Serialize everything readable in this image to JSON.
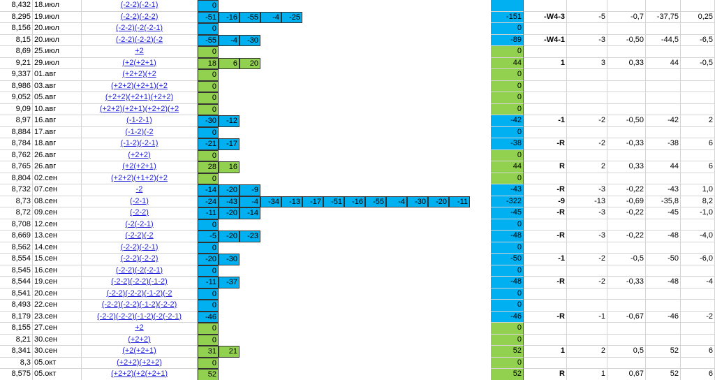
{
  "rows": [
    {
      "a": "8,432",
      "date": "18.июл",
      "formula": "(-2-2)(-2-1)",
      "fill": "#00b0f0",
      "cells": [
        0
      ]
    },
    {
      "a": "8,295",
      "date": "19.июл",
      "formula": "(-2-2)(-2-2)",
      "fill": "#00b0f0",
      "cells": [
        -51,
        -16,
        -55,
        -4,
        -25
      ],
      "total": -151,
      "label": "-W4-3",
      "n": "-5",
      "ratio": "-0,7",
      "avg": "-37,75",
      "last": "0,25"
    },
    {
      "a": "8,156",
      "date": "20.июл",
      "formula": "(-2-2)(-2(-2-1)",
      "fill": "#00b0f0",
      "cells": [
        0
      ],
      "total": 0
    },
    {
      "a": "8,15",
      "date": "20.июл",
      "formula": "(-2-2)(-2-2)(-2",
      "fill": "#00b0f0",
      "cells": [
        -55,
        -4,
        -30
      ],
      "total": -89,
      "label": "-W4-1",
      "n": "-3",
      "ratio": "-0,50",
      "avg": "-44,5",
      "last": "-6,5"
    },
    {
      "a": "8,69",
      "date": "25.июл",
      "formula": "+2",
      "fill": "#92d050",
      "cells": [
        0
      ],
      "total": 0
    },
    {
      "a": "9,21",
      "date": "29.июл",
      "formula": "(+2(+2+1)",
      "fill": "#92d050",
      "cells": [
        18,
        6,
        20
      ],
      "total": 44,
      "label": "1",
      "n": "3",
      "ratio": "0,33",
      "avg": "44",
      "last": "-0,5"
    },
    {
      "a": "9,337",
      "date": "01.авг",
      "formula": "(+2+2)(+2",
      "fill": "#92d050",
      "cells": [
        0
      ],
      "total": 0
    },
    {
      "a": "8,986",
      "date": "03.авг",
      "formula": "(+2+2)(+2+1)(+2",
      "fill": "#92d050",
      "cells": [
        0
      ],
      "total": 0
    },
    {
      "a": "9,052",
      "date": "05.авг",
      "formula": "(+2+2)(+2+1)(+2+2)",
      "fill": "#92d050",
      "cells": [
        0
      ],
      "total": 0
    },
    {
      "a": "9,09",
      "date": "10.авг",
      "formula": "(+2+2)(+2+1)(+2+2)(+2",
      "fill": "#92d050",
      "cells": [
        0
      ],
      "total": 0
    },
    {
      "a": "8,97",
      "date": "16.авг",
      "formula": "(-1-2-1)",
      "fill": "#00b0f0",
      "cells": [
        -30,
        -12
      ],
      "total": -42,
      "label": "-1",
      "n": "-2",
      "ratio": "-0,50",
      "avg": "-42",
      "last": "2"
    },
    {
      "a": "8,884",
      "date": "17.авг",
      "formula": "(-1-2)(-2",
      "fill": "#00b0f0",
      "cells": [
        0
      ],
      "total": 0
    },
    {
      "a": "8,784",
      "date": "18.авг",
      "formula": "(-1-2)(-2-1)",
      "fill": "#00b0f0",
      "cells": [
        -21,
        -17
      ],
      "total": -38,
      "label": "-R",
      "n": "-2",
      "ratio": "-0,33",
      "avg": "-38",
      "last": "6"
    },
    {
      "a": "8,762",
      "date": "26.авг",
      "formula": "(+2+2)",
      "fill": "#92d050",
      "cells": [
        0
      ],
      "total": 0
    },
    {
      "a": "8,765",
      "date": "26.авг",
      "formula": "(+2(+2+1)",
      "fill": "#92d050",
      "cells": [
        28,
        16
      ],
      "total": 44,
      "label": "R",
      "n": "2",
      "ratio": "0,33",
      "avg": "44",
      "last": "6"
    },
    {
      "a": "8,804",
      "date": "02.сен",
      "formula": "(+2+2)(+1+2)(+2",
      "fill": "#92d050",
      "cells": [
        0
      ],
      "total": 0
    },
    {
      "a": "8,732",
      "date": "07.сен",
      "formula": "-2",
      "fill": "#00b0f0",
      "cells": [
        -14,
        -20,
        -9
      ],
      "total": -43,
      "label": "-R",
      "n": "-3",
      "ratio": "-0,22",
      "avg": "-43",
      "last": "1,0"
    },
    {
      "a": "8,73",
      "date": "08.сен",
      "formula": "(-2-1)",
      "fill": "#00b0f0",
      "cells": [
        -24,
        -43,
        -4,
        -34,
        -13,
        -17,
        -51,
        -16,
        -55,
        -4,
        -30,
        -20,
        -11
      ],
      "total": -322,
      "label": "-9",
      "n": "-13",
      "ratio": "-0,69",
      "avg": "-35,8",
      "last": "8,2"
    },
    {
      "a": "8,72",
      "date": "09.сен",
      "formula": "(-2-2)",
      "fill": "#00b0f0",
      "cells": [
        -11,
        -20,
        -14
      ],
      "total": -45,
      "label": "-R",
      "n": "-3",
      "ratio": "-0,22",
      "avg": "-45",
      "last": "-1,0"
    },
    {
      "a": "8,708",
      "date": "12.сен",
      "formula": "(-2(-2-1)",
      "fill": "#00b0f0",
      "cells": [
        0
      ],
      "total": 0
    },
    {
      "a": "8,669",
      "date": "13.сен",
      "formula": "(-2-2)(-2",
      "fill": "#00b0f0",
      "cells": [
        -5,
        -20,
        -23
      ],
      "total": -48,
      "label": "-R",
      "n": "-3",
      "ratio": "-0,22",
      "avg": "-48",
      "last": "-4,0"
    },
    {
      "a": "8,562",
      "date": "14.сен",
      "formula": "(-2-2)(-2-1)",
      "fill": "#00b0f0",
      "cells": [
        0
      ],
      "total": 0
    },
    {
      "a": "8,554",
      "date": "15.сен",
      "formula": "(-2-2)(-2-2)",
      "fill": "#00b0f0",
      "cells": [
        -20,
        -30
      ],
      "total": -50,
      "label": "-1",
      "n": "-2",
      "ratio": "-0,5",
      "avg": "-50",
      "last": "-6,0"
    },
    {
      "a": "8,545",
      "date": "16.сен",
      "formula": "(-2-2)(-2(-2-1)",
      "fill": "#00b0f0",
      "cells": [
        0
      ],
      "total": 0
    },
    {
      "a": "8,544",
      "date": "19.сен",
      "formula": "(-2-2)(-2-2)(-1-2)",
      "fill": "#00b0f0",
      "cells": [
        -11,
        -37
      ],
      "total": -48,
      "label": "-R",
      "n": "-2",
      "ratio": "-0,33",
      "avg": "-48",
      "last": "-4"
    },
    {
      "a": "8,541",
      "date": "20.сен",
      "formula": "(-2-2)(-2-2)(-1-2)(-2",
      "fill": "#00b0f0",
      "cells": [
        0
      ],
      "total": 0
    },
    {
      "a": "8,493",
      "date": "22.сен",
      "formula": "(-2-2)(-2-2)(-1-2)(-2-2)",
      "fill": "#00b0f0",
      "cells": [
        0
      ],
      "total": 0
    },
    {
      "a": "8,179",
      "date": "23.сен",
      "formula": "(-2-2)(-2-2)(-1-2)(-2(-2-1)",
      "fill": "#00b0f0",
      "cells": [
        -46
      ],
      "total": -46,
      "label": "-R",
      "n": "-1",
      "ratio": "-0,67",
      "avg": "-46",
      "last": "-2"
    },
    {
      "a": "8,155",
      "date": "27.сен",
      "formula": "+2",
      "fill": "#92d050",
      "cells": [
        0
      ],
      "total": 0
    },
    {
      "a": "8,21",
      "date": "30.сен",
      "formula": "(+2+2)",
      "fill": "#92d050",
      "cells": [
        0
      ],
      "total": 0
    },
    {
      "a": "8,341",
      "date": "30.сен",
      "formula": "(+2(+2+1)",
      "fill": "#92d050",
      "cells": [
        31,
        21
      ],
      "total": 52,
      "label": "1",
      "n": "2",
      "ratio": "0,5",
      "avg": "52",
      "last": "6"
    },
    {
      "a": "8,3",
      "date": "05.окт",
      "formula": "(+2+2)(+2+2)",
      "fill": "#92d050",
      "cells": [
        0
      ],
      "total": 0
    },
    {
      "a": "8,575",
      "date": "05.окт",
      "formula": "(+2+2)(+2(+2+1)",
      "fill": "#92d050",
      "cells": [
        52
      ],
      "total": 52,
      "label": "R",
      "n": "1",
      "ratio": "0,67",
      "avg": "52",
      "last": "6"
    }
  ]
}
